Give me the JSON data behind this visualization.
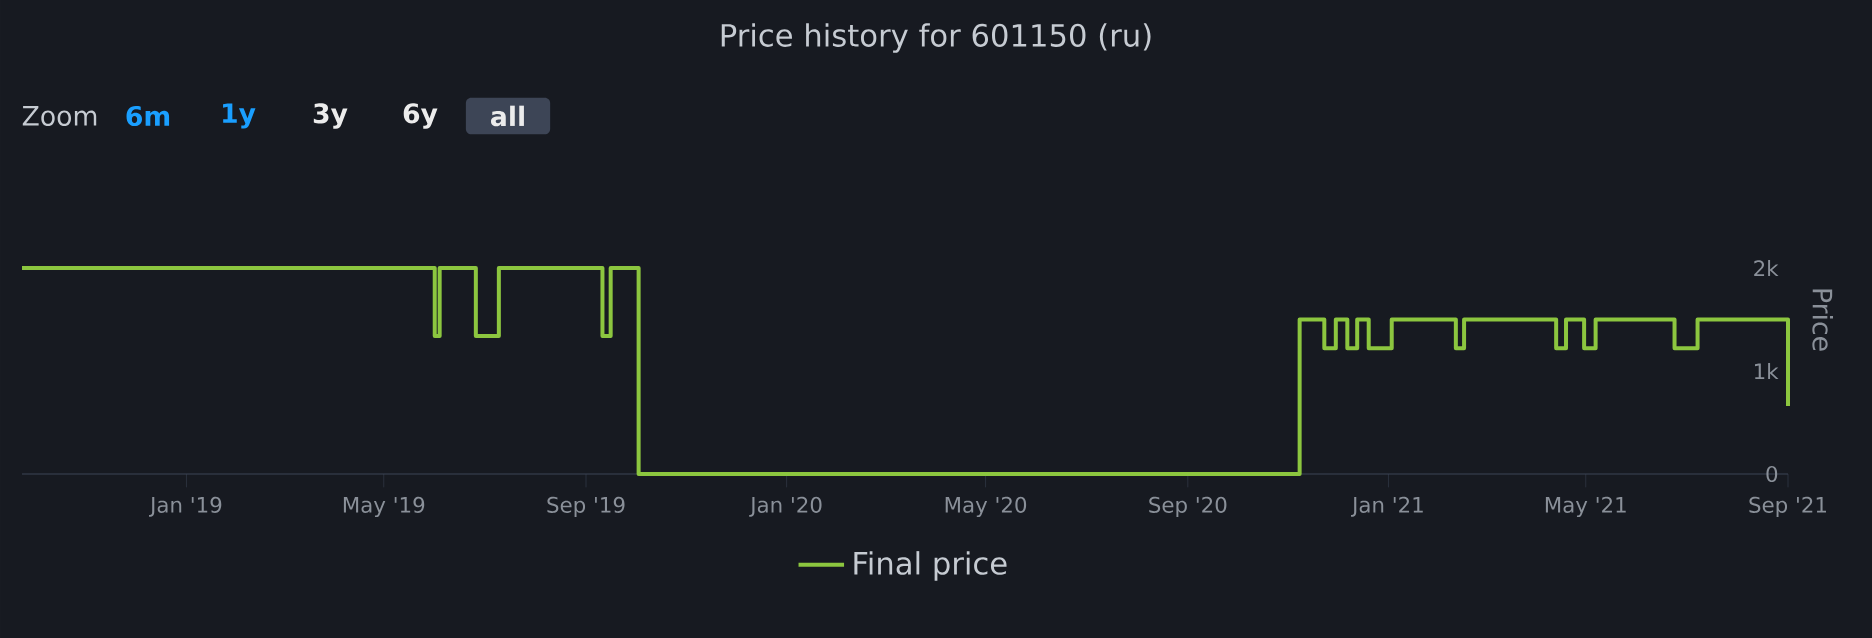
{
  "chart_data": {
    "type": "step",
    "title": "Price history for 601150 (ru)",
    "annotations": [
      "Zoom",
      "6m",
      "1y",
      "3y",
      "6y",
      "all"
    ],
    "ylabel": "Price",
    "x": [
      "2018-09-23",
      "2019-06-01",
      "2019-06-04",
      "2019-06-26",
      "2019-07-10",
      "2019-09-11",
      "2019-09-16",
      "2019-10-03",
      "2020-11-08",
      "2020-11-23",
      "2020-11-30",
      "2020-12-07",
      "2020-12-13",
      "2020-12-20",
      "2021-01-03",
      "2021-02-11",
      "2021-02-16",
      "2021-04-13",
      "2021-04-19",
      "2021-04-30",
      "2021-05-07",
      "2021-06-24",
      "2021-07-08",
      "2021-09-01"
    ],
    "series": [
      {
        "name": "Final price",
        "color": "#8cc63f",
        "values": [
          2000,
          1340,
          2000,
          1340,
          2000,
          1340,
          2000,
          0,
          1500,
          1220,
          1500,
          1220,
          1500,
          1220,
          1500,
          1220,
          1500,
          1220,
          1500,
          1220,
          1500,
          1220,
          1500,
          660
        ]
      }
    ],
    "xlim": [
      "2018-09-23",
      "2021-09-01"
    ],
    "xticks": [
      {
        "value": "2019-01-01",
        "label": "Jan '19"
      },
      {
        "value": "2019-05-01",
        "label": "May '19"
      },
      {
        "value": "2019-09-01",
        "label": "Sep '19"
      },
      {
        "value": "2020-01-01",
        "label": "Jan '20"
      },
      {
        "value": "2020-05-01",
        "label": "May '20"
      },
      {
        "value": "2020-09-01",
        "label": "Sep '20"
      },
      {
        "value": "2021-01-01",
        "label": "Jan '21"
      },
      {
        "value": "2021-05-01",
        "label": "May '21"
      },
      {
        "value": "2021-09-01",
        "label": "Sep '21"
      }
    ],
    "ylim": [
      0,
      2000
    ],
    "yticks": [
      0,
      {
        "value": 1000,
        "label": "1k"
      },
      {
        "value": 2000,
        "label": "2k"
      }
    ],
    "legend": "bottom"
  }
}
